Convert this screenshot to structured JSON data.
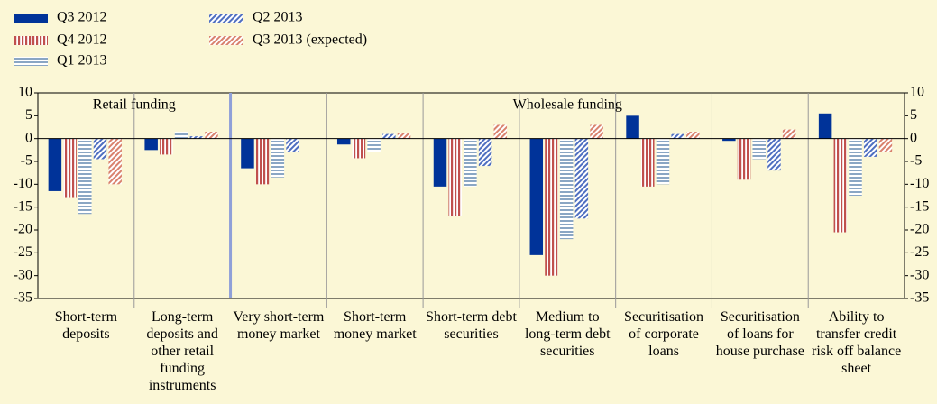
{
  "chart_data": {
    "type": "bar",
    "categories": [
      "Short-term deposits",
      "Long-term deposits and other retail funding instruments",
      "Very short-term money market",
      "Short-term money market",
      "Short-term debt securities",
      "Medium to long-term debt securities",
      "Securitisation of corporate loans",
      "Securitisation of loans for house purchase",
      "Ability to transfer credit risk off balance sheet"
    ],
    "series": [
      {
        "name": "Q3 2012",
        "color": "#003399",
        "hatch": "solid",
        "values": [
          -11.5,
          -2.5,
          -6.5,
          -1.3,
          -10.5,
          -25.5,
          5,
          -0.5,
          5.5
        ]
      },
      {
        "name": "Q4 2012",
        "color": "#c0504d",
        "hatch": "vertical",
        "values": [
          -13,
          -3.5,
          -10,
          -4.3,
          -17,
          -30,
          -10.5,
          -9,
          -20.5
        ]
      },
      {
        "name": "Q1 2013",
        "color": "#8aa6c4",
        "hatch": "horizontal",
        "values": [
          -16.5,
          1.5,
          -8.5,
          -3,
          -10.5,
          -22,
          -10,
          -4.5,
          -12.5
        ]
      },
      {
        "name": "Q2 2013",
        "color": "#4f6fc0",
        "hatch": "diagonal",
        "values": [
          -4.5,
          0.5,
          -3,
          1,
          -6,
          -17.5,
          1,
          -7,
          -4
        ]
      },
      {
        "name": "Q3 2013 (expected)",
        "color": "#d9826e",
        "hatch": "diagonal",
        "values": [
          -10,
          1.5,
          0,
          1.3,
          3,
          3,
          1.5,
          2,
          -3
        ]
      }
    ],
    "annotations": [
      "Retail funding",
      "Wholesale funding"
    ],
    "ylim": [
      -35,
      10
    ],
    "yticks": [
      10,
      5,
      0,
      -5,
      -10,
      -15,
      -20,
      -25,
      -30,
      -35
    ],
    "y2lim": [
      -35,
      10
    ],
    "y2ticks": [
      10,
      5,
      0,
      -5,
      -10,
      -15,
      -20,
      -25,
      -30,
      -35
    ],
    "grid": false
  }
}
